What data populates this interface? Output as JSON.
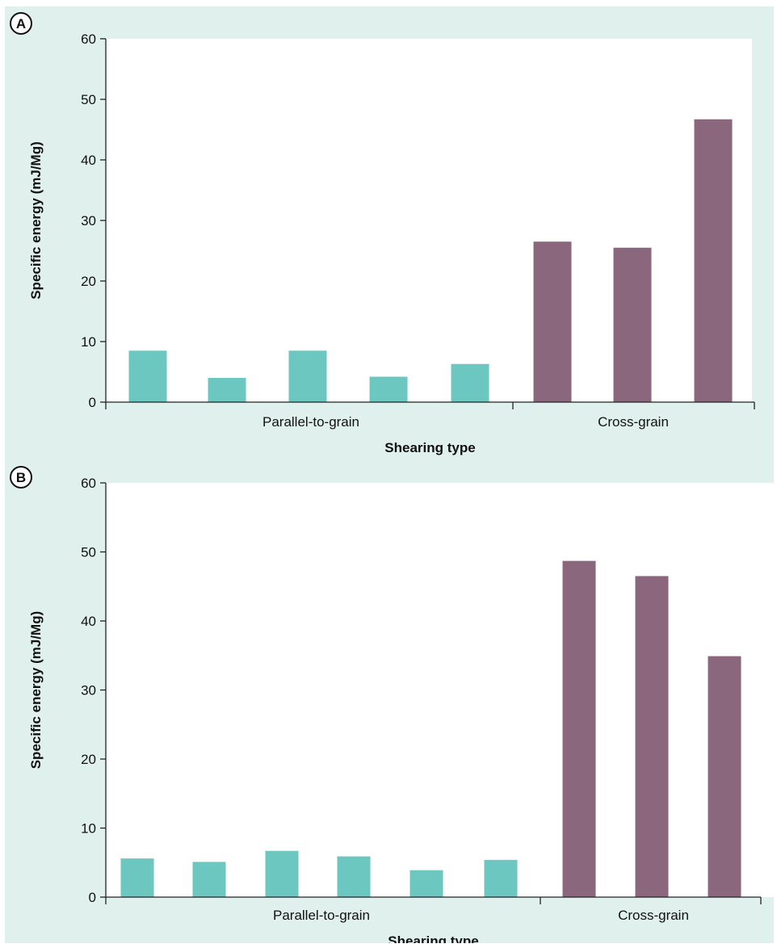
{
  "colors": {
    "background": "#e0f0ed",
    "plot_area": "#ffffff",
    "parallel": "#6cc7c0",
    "cross": "#8b677d",
    "axis": "#222222"
  },
  "chart_data": [
    {
      "type": "bar",
      "panel_label": "A",
      "xlabel": "Shearing type",
      "ylabel": "Specific energy (mJ/Mg)",
      "ylim": [
        0,
        60
      ],
      "yticks": [
        "0",
        "10",
        "20",
        "30",
        "40",
        "50",
        "60"
      ],
      "grid": false,
      "groups": [
        {
          "label": "Parallel-to-grain",
          "color_key": "parallel",
          "values": [
            8.5,
            4.0,
            8.5,
            4.2,
            6.3
          ]
        },
        {
          "label": "Cross-grain",
          "color_key": "cross",
          "values": [
            26.5,
            25.5,
            46.7
          ]
        }
      ]
    },
    {
      "type": "bar",
      "panel_label": "B",
      "xlabel": "Shearing type",
      "ylabel": "Specific energy (mJ/Mg)",
      "ylim": [
        0,
        60
      ],
      "yticks": [
        "0",
        "10",
        "20",
        "30",
        "40",
        "50",
        "60"
      ],
      "grid": false,
      "groups": [
        {
          "label": "Parallel-to-grain",
          "color_key": "parallel",
          "values": [
            5.6,
            5.1,
            6.7,
            5.9,
            3.9,
            5.4
          ]
        },
        {
          "label": "Cross-grain",
          "color_key": "cross",
          "values": [
            48.7,
            46.5,
            34.9
          ]
        }
      ]
    }
  ]
}
